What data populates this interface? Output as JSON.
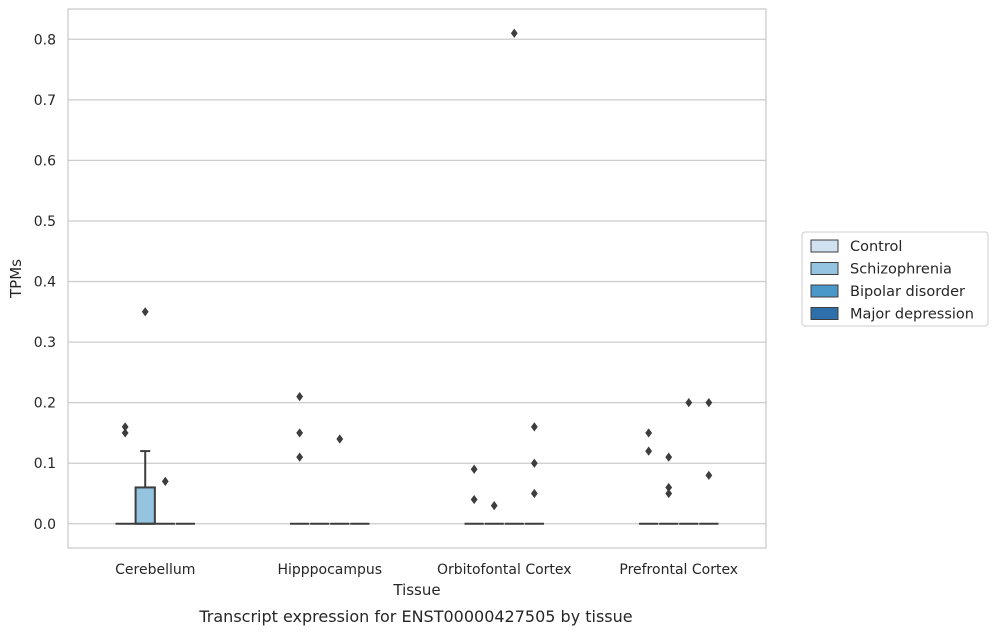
{
  "chart_data": {
    "type": "box",
    "xlabel": "Tissue",
    "ylabel": "TPMs",
    "caption": "Transcript expression for ENST00000427505 by tissue",
    "ylim": [
      -0.04,
      0.85
    ],
    "yticks": [
      "0.0",
      "0.1",
      "0.2",
      "0.3",
      "0.4",
      "0.5",
      "0.6",
      "0.7",
      "0.8"
    ],
    "grid": "horizontal",
    "legend_position": "right",
    "categories": [
      "Cerebellum",
      "Hipppocampus",
      "Orbitofontal Cortex",
      "Prefrontal Cortex"
    ],
    "series": [
      {
        "name": "Control",
        "color": "#d0e1f2",
        "boxes": [
          {
            "q1": 0,
            "median": 0,
            "q3": 0,
            "whisker_low": 0,
            "whisker_high": 0,
            "outliers": [
              0.15,
              0.16
            ]
          },
          {
            "q1": 0,
            "median": 0,
            "q3": 0,
            "whisker_low": 0,
            "whisker_high": 0,
            "outliers": [
              0.11,
              0.15,
              0.21
            ]
          },
          {
            "q1": 0,
            "median": 0,
            "q3": 0,
            "whisker_low": 0,
            "whisker_high": 0,
            "outliers": [
              0.04,
              0.09
            ]
          },
          {
            "q1": 0,
            "median": 0,
            "q3": 0,
            "whisker_low": 0,
            "whisker_high": 0,
            "outliers": [
              0.12,
              0.15
            ]
          }
        ]
      },
      {
        "name": "Schizophrenia",
        "color": "#94c4df",
        "boxes": [
          {
            "q1": 0,
            "median": 0,
            "q3": 0.06,
            "whisker_low": 0,
            "whisker_high": 0.12,
            "outliers": [
              0.35
            ]
          },
          {
            "q1": 0,
            "median": 0,
            "q3": 0,
            "whisker_low": 0,
            "whisker_high": 0,
            "outliers": []
          },
          {
            "q1": 0,
            "median": 0,
            "q3": 0,
            "whisker_low": 0,
            "whisker_high": 0,
            "outliers": [
              0.03
            ]
          },
          {
            "q1": 0,
            "median": 0,
            "q3": 0,
            "whisker_low": 0,
            "whisker_high": 0,
            "outliers": [
              0.05,
              0.06,
              0.11
            ]
          }
        ]
      },
      {
        "name": "Bipolar disorder",
        "color": "#4a98c9",
        "boxes": [
          {
            "q1": 0,
            "median": 0,
            "q3": 0,
            "whisker_low": 0,
            "whisker_high": 0,
            "outliers": [
              0.07
            ]
          },
          {
            "q1": 0,
            "median": 0,
            "q3": 0,
            "whisker_low": 0,
            "whisker_high": 0,
            "outliers": [
              0.14
            ]
          },
          {
            "q1": 0,
            "median": 0,
            "q3": 0,
            "whisker_low": 0,
            "whisker_high": 0,
            "outliers": [
              0.81
            ]
          },
          {
            "q1": 0,
            "median": 0,
            "q3": 0,
            "whisker_low": 0,
            "whisker_high": 0,
            "outliers": [
              0.2
            ]
          }
        ]
      },
      {
        "name": "Major depression",
        "color": "#2e6fab",
        "boxes": [
          {
            "q1": 0,
            "median": 0,
            "q3": 0,
            "whisker_low": 0,
            "whisker_high": 0,
            "outliers": []
          },
          {
            "q1": 0,
            "median": 0,
            "q3": 0,
            "whisker_low": 0,
            "whisker_high": 0,
            "outliers": []
          },
          {
            "q1": 0,
            "median": 0,
            "q3": 0,
            "whisker_low": 0,
            "whisker_high": 0,
            "outliers": [
              0.05,
              0.1,
              0.16
            ]
          },
          {
            "q1": 0,
            "median": 0,
            "q3": 0,
            "whisker_low": 0,
            "whisker_high": 0,
            "outliers": [
              0.08,
              0.2
            ]
          }
        ]
      }
    ]
  }
}
